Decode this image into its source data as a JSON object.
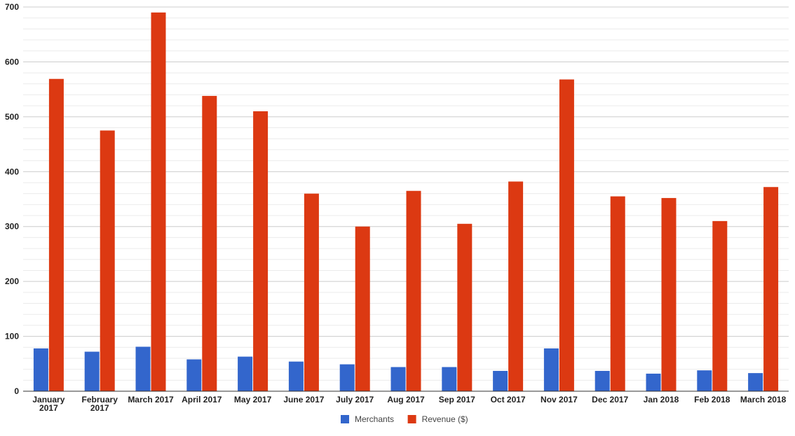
{
  "chart_data": {
    "type": "bar",
    "categories": [
      [
        "January",
        "2017"
      ],
      [
        "February",
        "2017"
      ],
      [
        "March 2017"
      ],
      [
        "April 2017"
      ],
      [
        "May 2017"
      ],
      [
        "June 2017"
      ],
      [
        "July 2017"
      ],
      [
        "Aug 2017"
      ],
      [
        "Sep 2017"
      ],
      [
        "Oct 2017"
      ],
      [
        "Nov 2017"
      ],
      [
        "Dec 2017"
      ],
      [
        "Jan 2018"
      ],
      [
        "Feb 2018"
      ],
      [
        "March 2018"
      ]
    ],
    "series": [
      {
        "name": "Merchants",
        "color": "#3366cc",
        "values": [
          78,
          72,
          81,
          58,
          63,
          54,
          49,
          44,
          44,
          37,
          78,
          37,
          32,
          38,
          33
        ]
      },
      {
        "name": "Revenue ($)",
        "color": "#dc3912",
        "values": [
          569,
          475,
          690,
          538,
          510,
          360,
          300,
          365,
          305,
          382,
          568,
          355,
          352,
          310,
          372
        ]
      }
    ],
    "ylim": [
      0,
      700
    ],
    "yticks": [
      0,
      100,
      200,
      300,
      400,
      500,
      600,
      700
    ],
    "minor_gridlines_per_major": 5,
    "grid": true,
    "legend_position": "bottom",
    "title": "",
    "xlabel": "",
    "ylabel": ""
  }
}
